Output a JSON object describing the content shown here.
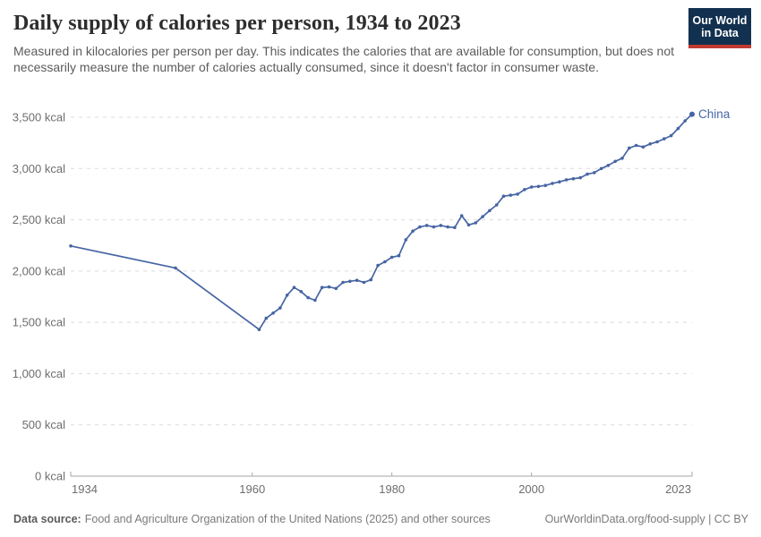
{
  "header": {
    "title": "Daily supply of calories per person, 1934 to 2023",
    "subtitle": "Measured in kilocalories per person per day. This indicates the calories that are available for consumption, but does not necessarily measure the number of calories actually consumed, since it doesn't factor in consumer waste."
  },
  "logo": {
    "line1": "Our World",
    "line2": "in Data"
  },
  "chart_data": {
    "type": "line",
    "title": "Daily supply of calories per person, 1934 to 2023",
    "xlabel": "",
    "ylabel": "",
    "xlim": [
      1934,
      2023
    ],
    "ylim": [
      0,
      3500
    ],
    "x_ticks": [
      1934,
      1960,
      1980,
      2000,
      2023
    ],
    "y_ticks": [
      0,
      500,
      1000,
      1500,
      2000,
      2500,
      3000,
      3500
    ],
    "y_tick_suffix": " kcal",
    "grid": "horizontal-dashed",
    "legend_position": "end-of-line-label",
    "series": [
      {
        "name": "China",
        "color": "#4665A4",
        "points": [
          [
            1934,
            2245
          ],
          [
            1949,
            2030
          ],
          [
            1961,
            1430
          ],
          [
            1962,
            1540
          ],
          [
            1963,
            1590
          ],
          [
            1964,
            1640
          ],
          [
            1965,
            1765
          ],
          [
            1966,
            1840
          ],
          [
            1967,
            1800
          ],
          [
            1968,
            1740
          ],
          [
            1969,
            1715
          ],
          [
            1970,
            1840
          ],
          [
            1971,
            1845
          ],
          [
            1972,
            1830
          ],
          [
            1973,
            1890
          ],
          [
            1974,
            1900
          ],
          [
            1975,
            1910
          ],
          [
            1976,
            1890
          ],
          [
            1977,
            1915
          ],
          [
            1978,
            2055
          ],
          [
            1979,
            2090
          ],
          [
            1980,
            2135
          ],
          [
            1981,
            2150
          ],
          [
            1982,
            2305
          ],
          [
            1983,
            2390
          ],
          [
            1984,
            2430
          ],
          [
            1985,
            2445
          ],
          [
            1986,
            2430
          ],
          [
            1987,
            2445
          ],
          [
            1988,
            2430
          ],
          [
            1989,
            2425
          ],
          [
            1990,
            2540
          ],
          [
            1991,
            2450
          ],
          [
            1992,
            2470
          ],
          [
            1993,
            2530
          ],
          [
            1994,
            2590
          ],
          [
            1995,
            2645
          ],
          [
            1996,
            2730
          ],
          [
            1997,
            2740
          ],
          [
            1998,
            2750
          ],
          [
            1999,
            2795
          ],
          [
            2000,
            2820
          ],
          [
            2001,
            2825
          ],
          [
            2002,
            2835
          ],
          [
            2003,
            2855
          ],
          [
            2004,
            2870
          ],
          [
            2005,
            2890
          ],
          [
            2006,
            2900
          ],
          [
            2007,
            2910
          ],
          [
            2008,
            2945
          ],
          [
            2009,
            2960
          ],
          [
            2010,
            3000
          ],
          [
            2011,
            3030
          ],
          [
            2012,
            3070
          ],
          [
            2013,
            3100
          ],
          [
            2014,
            3200
          ],
          [
            2015,
            3225
          ],
          [
            2016,
            3210
          ],
          [
            2017,
            3240
          ],
          [
            2018,
            3260
          ],
          [
            2019,
            3290
          ],
          [
            2020,
            3320
          ],
          [
            2021,
            3390
          ],
          [
            2022,
            3465
          ],
          [
            2023,
            3530
          ]
        ]
      }
    ]
  },
  "colors": {
    "line": "#4665A4",
    "grid": "#DBDBDB",
    "axis": "#A5A5A5",
    "tick_label": "#6E6E6E",
    "logo_bg": "#12304F",
    "logo_stripe": "#C03A31"
  },
  "footer": {
    "source_label": "Data source:",
    "source_text": "Food and Agriculture Organization of the United Nations (2025) and other sources",
    "url": "OurWorldinData.org/food-supply",
    "separator": " | ",
    "license": "CC BY"
  }
}
